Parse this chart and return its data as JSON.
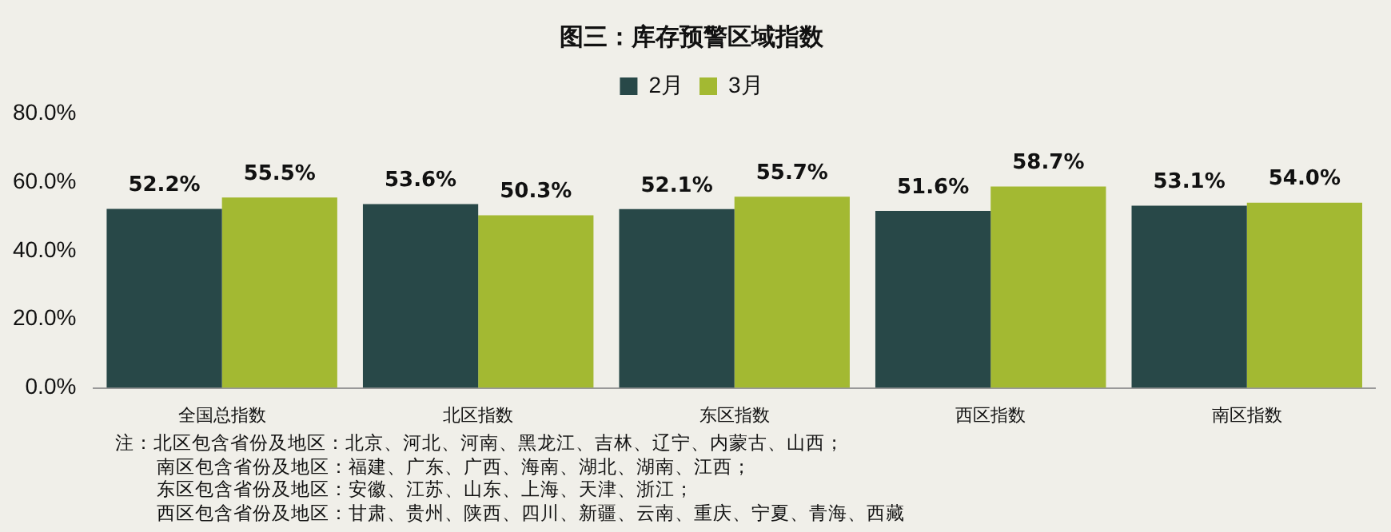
{
  "chart_data": {
    "type": "bar",
    "title": "图三：库存预警区域指数",
    "categories": [
      "全国总指数",
      "北区指数",
      "东区指数",
      "西区指数",
      "南区指数"
    ],
    "series": [
      {
        "name": "2月",
        "color": "#284848",
        "values": [
          52.2,
          53.6,
          52.1,
          51.6,
          53.1
        ],
        "value_labels": [
          "52.2%",
          "53.6%",
          "52.1%",
          "51.6%",
          "53.1%"
        ]
      },
      {
        "name": "3月",
        "color": "#a3b932",
        "values": [
          55.5,
          50.3,
          55.7,
          58.7,
          54.0
        ],
        "value_labels": [
          "55.5%",
          "50.3%",
          "55.7%",
          "58.7%",
          "54.0%"
        ]
      }
    ],
    "ylim": [
      0,
      80
    ],
    "yticks": [
      {
        "value": 0,
        "label": "0.0%"
      },
      {
        "value": 20,
        "label": "20.0%"
      },
      {
        "value": 40,
        "label": "40.0%"
      },
      {
        "value": 60,
        "label": "60.0%"
      },
      {
        "value": 80,
        "label": "80.0%"
      }
    ],
    "grid": false,
    "legend": "top",
    "annotations": [
      "注：北区包含省份及地区：北京、河北、河南、黑龙江、吉林、辽宁、内蒙古、山西；",
      "南区包含省份及地区：福建、广东、广西、海南、湖北、湖南、江西；",
      "东区包含省份及地区：安徽、江苏、山东、上海、天津、浙江；",
      "西区包含省份及地区：甘肃、贵州、陕西、四川、新疆、云南、重庆、宁夏、青海、西藏"
    ]
  }
}
